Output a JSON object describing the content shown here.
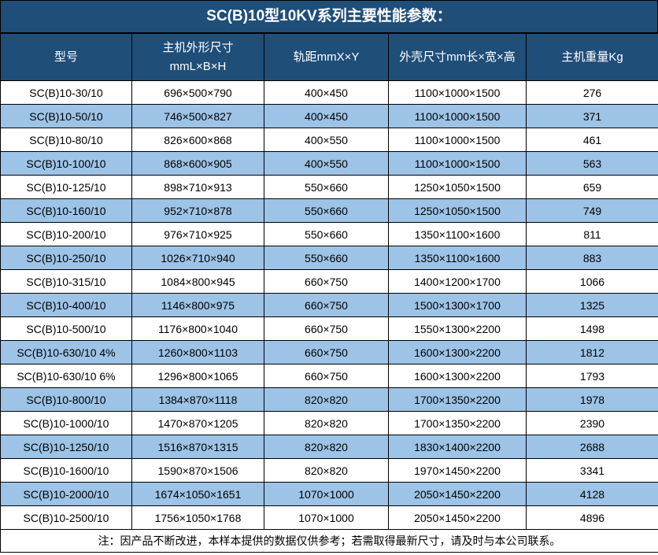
{
  "page": {
    "title": "SC(B)10型10KV系列主要性能参数：",
    "note": "注：因产品不断改进，本样本提供的数据仅供参考；若需取得最新尺寸，请及时与本公司联系。"
  },
  "colors": {
    "header_bg": "#1F4E79",
    "row_alt_bg": "#9DC3E6",
    "row_bg": "#FFFFFF",
    "border": "#000000",
    "header_text": "#FFFFFF",
    "body_text": "#000000"
  },
  "table": {
    "columns": [
      {
        "id": "model",
        "lines": [
          "型号"
        ]
      },
      {
        "id": "unit-dimensions",
        "lines": [
          "主机外形尺寸",
          "mmL×B×H"
        ]
      },
      {
        "id": "rail-gauge",
        "lines": [
          "轨距mmX×Y"
        ]
      },
      {
        "id": "shell-size",
        "lines": [
          "外壳尺寸mm长×宽×高"
        ]
      },
      {
        "id": "weight",
        "lines": [
          "主机重量Kg"
        ]
      }
    ],
    "rows": [
      [
        "SC(B)10-30/10",
        "696×500×790",
        "400×450",
        "1100×1000×1500",
        "276"
      ],
      [
        "SC(B)10-50/10",
        "746×500×827",
        "400×450",
        "1100×1000×1500",
        "371"
      ],
      [
        "SC(B)10-80/10",
        "826×600×868",
        "400×550",
        "1100×1000×1500",
        "461"
      ],
      [
        "SC(B)10-100/10",
        "868×600×905",
        "400×550",
        "1100×1000×1500",
        "563"
      ],
      [
        "SC(B)10-125/10",
        "898×710×913",
        "550×660",
        "1250×1050×1500",
        "659"
      ],
      [
        "SC(B)10-160/10",
        "952×710×878",
        "550×660",
        "1250×1050×1500",
        "749"
      ],
      [
        "SC(B)10-200/10",
        "976×710×925",
        "550×660",
        "1350×1100×1600",
        "811"
      ],
      [
        "SC(B)10-250/10",
        "1026×710×940",
        "550×660",
        "1350×1100×1600",
        "883"
      ],
      [
        "SC(B)10-315/10",
        "1084×800×945",
        "660×750",
        "1400×1200×1700",
        "1066"
      ],
      [
        "SC(B)10-400/10",
        "1146×800×975",
        "660×750",
        "1500×1300×1700",
        "1325"
      ],
      [
        "SC(B)10-500/10",
        "1176×800×1040",
        "660×750",
        "1550×1300×2200",
        "1498"
      ],
      [
        "SC(B)10-630/10 4%",
        "1260×800×1103",
        "660×750",
        "1600×1300×2200",
        "1812"
      ],
      [
        "SC(B)10-630/10 6%",
        "1296×800×1065",
        "660×750",
        "1600×1300×2200",
        "1793"
      ],
      [
        "SC(B)10-800/10",
        "1384×870×1118",
        "820×820",
        "1700×1350×2200",
        "1978"
      ],
      [
        "SC(B)10-1000/10",
        "1470×870×1205",
        "820×820",
        "1700×1350×2200",
        "2390"
      ],
      [
        "SC(B)10-1250/10",
        "1516×870×1315",
        "820×820",
        "1830×1400×2200",
        "2688"
      ],
      [
        "SC(B)10-1600/10",
        "1590×870×1506",
        "820×820",
        "1970×1450×2200",
        "3341"
      ],
      [
        "SC(B)10-2000/10",
        "1674×1050×1651",
        "1070×1000",
        "2050×1450×2200",
        "4128"
      ],
      [
        "SC(B)10-2500/10",
        "1756×1050×1768",
        "1070×1000",
        "2050×1450×2200",
        "4896"
      ]
    ]
  }
}
